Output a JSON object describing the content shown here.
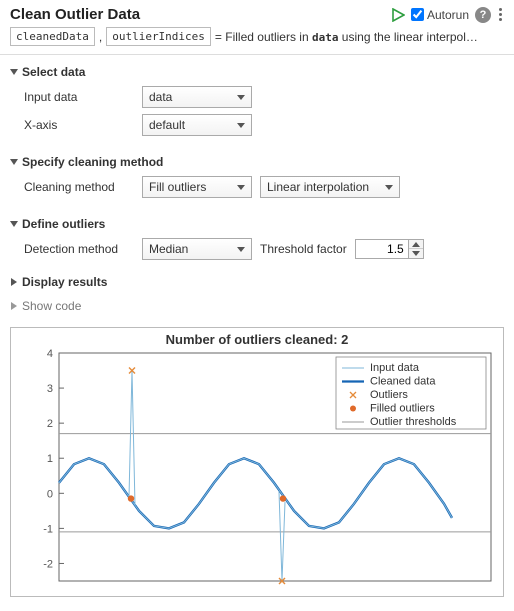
{
  "header": {
    "title": "Clean Outlier Data",
    "autorun_label": "Autorun"
  },
  "output": {
    "var1": "cleanedData",
    "var2": "outlierIndices",
    "desc_prefix": "= Filled outliers in ",
    "desc_var": "data",
    "desc_suffix": " using the linear interpol…"
  },
  "sections": {
    "select_data": {
      "title": "Select data",
      "input_label": "Input data",
      "input_value": "data",
      "xaxis_label": "X-axis",
      "xaxis_value": "default"
    },
    "cleaning": {
      "title": "Specify cleaning method",
      "method_label": "Cleaning method",
      "method_value": "Fill outliers",
      "interp_value": "Linear interpolation"
    },
    "outliers": {
      "title": "Define outliers",
      "detect_label": "Detection method",
      "detect_value": "Median",
      "thresh_label": "Threshold factor",
      "thresh_value": "1.5"
    },
    "display": {
      "title": "Display results"
    },
    "showcode": {
      "title": "Show code"
    }
  },
  "chart": {
    "title": "Number of outliers cleaned: 2",
    "y_ticks": [
      "4",
      "3",
      "2",
      "1",
      "0",
      "-1",
      "-2"
    ],
    "legend": [
      "Input data",
      "Cleaned data",
      "Outliers",
      "Filled outliers",
      "Outlier thresholds"
    ],
    "colors": {
      "input_line": "#7fb7d9",
      "cleaned_line": "#1565b5",
      "outlier_x": "#e58b3a",
      "filled_dot": "#e06a2a",
      "threshold": "#9a9a9a",
      "axis": "#666666",
      "tick_text": "#555555",
      "legend_border": "#888888"
    },
    "ylim": [
      -2.5,
      4
    ],
    "threshold_pos": 1.7,
    "threshold_neg": -1.1,
    "cleaned_series": [
      [
        0,
        0.3
      ],
      [
        15,
        0.83
      ],
      [
        30,
        1.0
      ],
      [
        45,
        0.83
      ],
      [
        60,
        0.3
      ],
      [
        70,
        -0.1
      ],
      [
        80,
        -0.5
      ],
      [
        95,
        -0.93
      ],
      [
        110,
        -1.0
      ],
      [
        125,
        -0.83
      ],
      [
        140,
        -0.3
      ],
      [
        155,
        0.3
      ],
      [
        170,
        0.83
      ],
      [
        185,
        1.0
      ],
      [
        200,
        0.83
      ],
      [
        215,
        0.3
      ],
      [
        225,
        -0.1
      ],
      [
        235,
        -0.5
      ],
      [
        250,
        -0.93
      ],
      [
        265,
        -1.0
      ],
      [
        280,
        -0.83
      ],
      [
        295,
        -0.3
      ],
      [
        310,
        0.3
      ],
      [
        325,
        0.83
      ],
      [
        340,
        1.0
      ],
      [
        355,
        0.83
      ],
      [
        370,
        0.3
      ],
      [
        385,
        -0.3
      ],
      [
        393,
        -0.7
      ]
    ],
    "input_spike1": [
      [
        70,
        -0.1
      ],
      [
        73,
        3.5
      ],
      [
        76,
        -0.35
      ]
    ],
    "input_spike2": [
      [
        220,
        0.05
      ],
      [
        223,
        -2.5
      ],
      [
        226,
        -0.25
      ]
    ],
    "outlier_points": [
      [
        73,
        3.5
      ],
      [
        223,
        -2.5
      ]
    ],
    "filled_points": [
      [
        72,
        -0.15
      ],
      [
        224,
        -0.15
      ]
    ]
  }
}
